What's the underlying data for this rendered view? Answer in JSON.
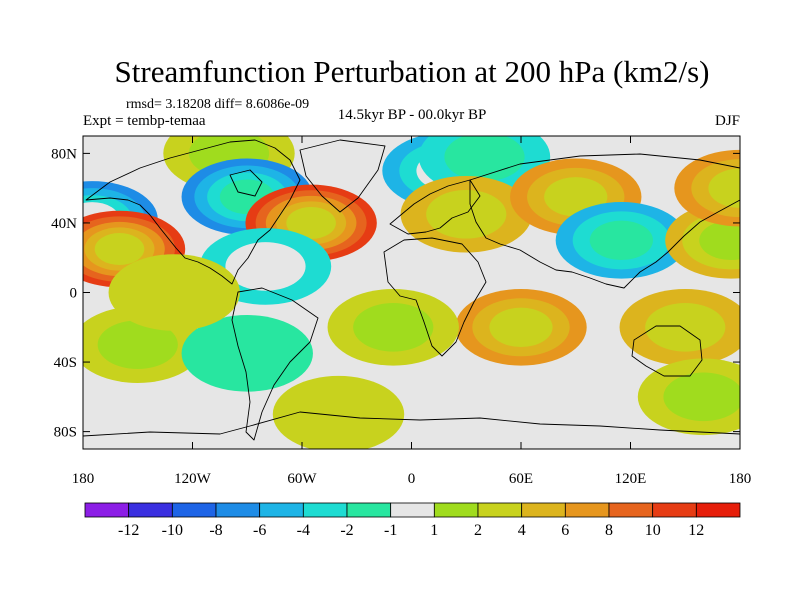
{
  "chart_data": {
    "type": "filled-contour-map",
    "title": "Streamfunction Perturbation at 200 hPa (km2/s)",
    "stats_text": "rmsd= 3.18208 diff= 8.6086e-09",
    "left_label": "Expt = tembp-temaa",
    "center_label": "14.5kyr BP - 00.0kyr BP",
    "right_label": "DJF",
    "x_ticks": [
      "180",
      "120W",
      "60W",
      "0",
      "60E",
      "120E",
      "180"
    ],
    "x_tick_values": [
      -180,
      -120,
      -60,
      0,
      60,
      120,
      180
    ],
    "y_ticks": [
      "80N",
      "40N",
      "0",
      "40S",
      "80S"
    ],
    "y_tick_values": [
      80,
      40,
      0,
      -40,
      -80
    ],
    "xlim": [
      -180,
      180
    ],
    "ylim": [
      -90,
      90
    ],
    "colorbar": {
      "levels": [
        "-12",
        "-10",
        "-8",
        "-6",
        "-4",
        "-2",
        "-1",
        "1",
        "2",
        "4",
        "6",
        "8",
        "10",
        "12"
      ],
      "colors": [
        "#8c1ee6",
        "#3a2fe0",
        "#1e64e6",
        "#1e8ce6",
        "#1eb4e6",
        "#1edcd2",
        "#28e6a0",
        "#e6e6e6",
        "#a0dc1e",
        "#c8d21e",
        "#dcb41e",
        "#e6961e",
        "#e6641e",
        "#e63c14",
        "#e61e0a"
      ]
    },
    "features": [
      {
        "lon": -175,
        "lat": 42,
        "value": -7
      },
      {
        "lon": -160,
        "lat": 25,
        "value": 10
      },
      {
        "lon": -100,
        "lat": 80,
        "value": 3
      },
      {
        "lon": -90,
        "lat": 55,
        "value": -8
      },
      {
        "lon": -55,
        "lat": 40,
        "value": 10
      },
      {
        "lon": -80,
        "lat": 15,
        "value": -3
      },
      {
        "lon": 20,
        "lat": 70,
        "value": -5
      },
      {
        "lon": 40,
        "lat": 78,
        "value": -4
      },
      {
        "lon": 30,
        "lat": 45,
        "value": 4
      },
      {
        "lon": 90,
        "lat": 55,
        "value": 6
      },
      {
        "lon": 115,
        "lat": 30,
        "value": -6
      },
      {
        "lon": 175,
        "lat": 30,
        "value": 5
      },
      {
        "lon": 180,
        "lat": 60,
        "value": 6
      },
      {
        "lon": 60,
        "lat": -20,
        "value": 6
      },
      {
        "lon": 150,
        "lat": -20,
        "value": 4
      },
      {
        "lon": -10,
        "lat": -20,
        "value": 3
      },
      {
        "lon": -150,
        "lat": -30,
        "value": 3
      },
      {
        "lon": -90,
        "lat": -35,
        "value": -2
      },
      {
        "lon": -40,
        "lat": -70,
        "value": 2
      },
      {
        "lon": 160,
        "lat": -60,
        "value": 3
      },
      {
        "lon": -130,
        "lat": 0,
        "value": 2
      }
    ]
  }
}
